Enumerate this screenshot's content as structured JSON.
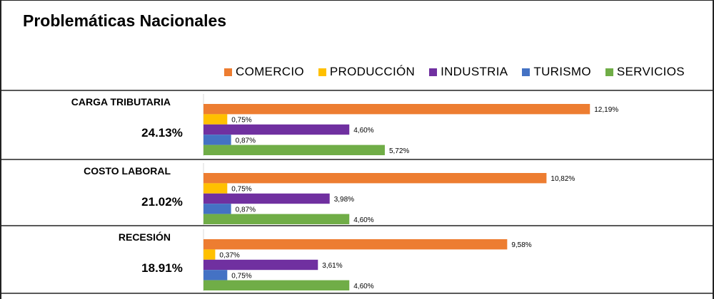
{
  "chart_data": {
    "type": "bar",
    "orientation": "horizontal",
    "title": "Problemáticas Nacionales",
    "legend_position": "top-right",
    "series": [
      {
        "name": "COMERCIO",
        "color": "#ED7D31"
      },
      {
        "name": "PRODUCCIÓN",
        "color": "#FFC000"
      },
      {
        "name": "INDUSTRIA",
        "color": "#7030A0"
      },
      {
        "name": "TURISMO",
        "color": "#4472C4"
      },
      {
        "name": "SERVICIOS",
        "color": "#70AD47"
      }
    ],
    "xlim": [
      0,
      13
    ],
    "groups": [
      {
        "name": "CARGA TRIBUTARIA",
        "total": "24.13%",
        "values": [
          12.19,
          0.75,
          4.6,
          0.87,
          5.72
        ],
        "labels": [
          "12,19%",
          "0,75%",
          "4,60%",
          "0,87%",
          "5,72%"
        ]
      },
      {
        "name": "COSTO LABORAL",
        "total": "21.02%",
        "values": [
          10.82,
          0.75,
          3.98,
          0.87,
          4.6
        ],
        "labels": [
          "10,82%",
          "0,75%",
          "3,98%",
          "0,87%",
          "4,60%"
        ]
      },
      {
        "name": "RECESIÓN",
        "total": "18.91%",
        "values": [
          9.58,
          0.37,
          3.61,
          0.75,
          4.6
        ],
        "labels": [
          "9,58%",
          "0,37%",
          "3,61%",
          "0,75%",
          "4,60%"
        ]
      }
    ]
  }
}
